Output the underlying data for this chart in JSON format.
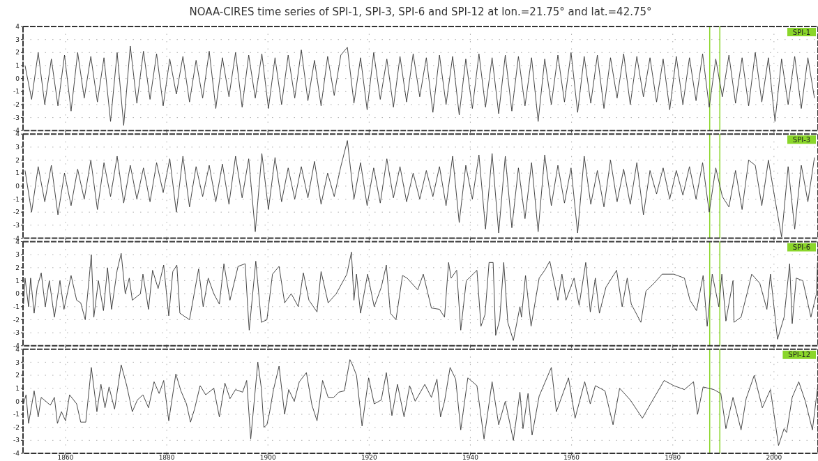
{
  "chart_data": [
    {
      "type": "line",
      "title": "NOAA-CIRES time series of SPI-1, SPI-3, SPI-6 and SPI-12 at lon.=21.75° and lat.=42.75°",
      "xlim": [
        1851.6,
        2008.7
      ],
      "xticks": [
        1860,
        1880,
        1900,
        1920,
        1940,
        1960,
        1980,
        2000
      ],
      "ylim": [
        -4,
        4
      ],
      "yticks": [
        -4,
        -3,
        -2,
        -1,
        0,
        1,
        2,
        3,
        4
      ],
      "grid": true,
      "tick_labels": "y",
      "annotations": [
        "SPI-1"
      ],
      "ref_lines": [
        {
          "axis": "x",
          "value": 1987.3,
          "color": "#8ad62a"
        },
        {
          "axis": "x",
          "value": 1989.3,
          "color": "#8ad62a"
        }
      ],
      "series": [
        {
          "color": "#333333",
          "x": [
            1852,
            1853.3,
            1854.6,
            1855.9,
            1857.2,
            1858.5,
            1859.8,
            1861.1,
            1862.4,
            1863.7,
            1865,
            1866.3,
            1867.6,
            1868.9,
            1870.2,
            1871.5,
            1872.8,
            1874.1,
            1875.4,
            1876.7,
            1878,
            1879.3,
            1880.6,
            1881.9,
            1883.2,
            1884.5,
            1885.8,
            1887.1,
            1888.4,
            1889.7,
            1891,
            1892.3,
            1893.6,
            1894.9,
            1896.2,
            1897.5,
            1898.8,
            1900.1,
            1901.4,
            1902.7,
            1904,
            1905.3,
            1906.6,
            1907.9,
            1909.2,
            1910.5,
            1911.8,
            1913.1,
            1914.4,
            1915.7,
            1917,
            1918.3,
            1919.6,
            1920.9,
            1922.2,
            1923.5,
            1924.8,
            1926.1,
            1927.4,
            1928.7,
            1930,
            1931.3,
            1932.6,
            1933.9,
            1935.2,
            1936.5,
            1937.8,
            1939.1,
            1940.4,
            1941.7,
            1943,
            1944.3,
            1945.6,
            1946.9,
            1948.2,
            1949.5,
            1950.8,
            1952.1,
            1953.4,
            1954.7,
            1956,
            1957.3,
            1958.6,
            1959.9,
            1961.2,
            1962.5,
            1963.8,
            1965.1,
            1966.4,
            1967.7,
            1969,
            1970.3,
            1971.6,
            1972.9,
            1974.2,
            1975.5,
            1976.8,
            1978.1,
            1979.4,
            1980.7,
            1982,
            1983.3,
            1984.6,
            1985.9,
            1987.2,
            1988.5,
            1989.8,
            1991.1,
            1992.4,
            1993.7,
            1995,
            1996.3,
            1997.6,
            1998.9,
            2000.2,
            2001.5,
            2002.8,
            2004.1,
            2005.4,
            2006.7,
            2008
          ],
          "values": [
            1.0,
            -1.6,
            2.0,
            -2.0,
            1.5,
            -2.1,
            1.8,
            -2.5,
            2.0,
            -1.5,
            1.7,
            -1.8,
            1.6,
            -3.3,
            2.0,
            -3.6,
            2.5,
            -1.9,
            2.1,
            -1.6,
            1.9,
            -2.1,
            1.5,
            -1.2,
            1.7,
            -1.8,
            1.4,
            -1.5,
            2.1,
            -2.3,
            1.6,
            -1.4,
            2.0,
            -2.2,
            1.8,
            -1.5,
            1.9,
            -2.3,
            1.6,
            -2.0,
            1.8,
            -1.5,
            2.2,
            -1.7,
            1.4,
            -2.1,
            1.7,
            -1.3,
            1.8,
            2.4,
            -1.9,
            1.6,
            -2.4,
            2.0,
            -1.6,
            1.5,
            -2.2,
            1.7,
            -1.8,
            1.9,
            -1.4,
            1.6,
            -2.6,
            1.8,
            -2.0,
            1.7,
            -2.8,
            1.5,
            -2.3,
            1.9,
            -2.2,
            1.6,
            -2.7,
            1.8,
            -2.5,
            1.7,
            -2.1,
            1.6,
            -3.3,
            1.5,
            -2.0,
            1.8,
            -1.8,
            2.0,
            -2.6,
            1.7,
            -1.9,
            1.8,
            -2.3,
            1.6,
            -1.5,
            1.9,
            -2.0,
            1.7,
            -1.4,
            1.6,
            -1.8,
            1.5,
            -2.4,
            1.7,
            -2.0,
            1.6,
            -1.7,
            1.9,
            -2.2,
            1.5,
            -1.4,
            1.8,
            -1.9,
            1.6,
            -2.1,
            2.0,
            -1.8,
            1.6,
            -3.3,
            1.5,
            -2.0,
            1.7,
            -2.3,
            1.6,
            -1.5
          ]
        }
      ]
    },
    {
      "type": "line",
      "xlim": [
        1851.6,
        2008.7
      ],
      "xticks": [
        1860,
        1880,
        1900,
        1920,
        1940,
        1960,
        1980,
        2000
      ],
      "ylim": [
        -4,
        4
      ],
      "yticks": [
        -4,
        -3,
        -2,
        -1,
        0,
        1,
        2,
        3,
        4
      ],
      "grid": true,
      "tick_labels": "y",
      "annotations": [
        "SPI-3"
      ],
      "ref_lines": [
        {
          "axis": "x",
          "value": 1987.3,
          "color": "#8ad62a"
        },
        {
          "axis": "x",
          "value": 1989.3,
          "color": "#8ad62a"
        }
      ],
      "series": [
        {
          "color": "#333333",
          "x": [
            1852,
            1853.3,
            1854.6,
            1855.9,
            1857.2,
            1858.5,
            1859.8,
            1861.1,
            1862.4,
            1863.7,
            1865,
            1866.3,
            1867.6,
            1868.9,
            1870.2,
            1871.5,
            1872.8,
            1874.1,
            1875.4,
            1876.7,
            1878,
            1879.3,
            1880.6,
            1881.9,
            1883.2,
            1884.5,
            1885.8,
            1887.1,
            1888.4,
            1889.7,
            1891,
            1892.3,
            1893.6,
            1894.9,
            1896.2,
            1897.5,
            1898.8,
            1900.1,
            1901.4,
            1902.7,
            1904,
            1905.3,
            1906.6,
            1907.9,
            1909.2,
            1910.5,
            1911.8,
            1913.1,
            1914.4,
            1915.7,
            1917,
            1918.3,
            1919.6,
            1920.9,
            1922.2,
            1923.5,
            1924.8,
            1926.1,
            1927.4,
            1928.7,
            1930,
            1931.3,
            1932.6,
            1933.9,
            1935.2,
            1936.5,
            1937.8,
            1939.1,
            1940.4,
            1941.7,
            1943,
            1944.3,
            1945.6,
            1946.9,
            1948.2,
            1949.5,
            1950.8,
            1952.1,
            1953.4,
            1954.7,
            1956,
            1957.3,
            1958.6,
            1959.9,
            1961.2,
            1962.5,
            1963.8,
            1965.1,
            1966.4,
            1967.7,
            1969,
            1970.3,
            1971.6,
            1972.9,
            1974.2,
            1975.5,
            1976.8,
            1978.1,
            1979.4,
            1980.7,
            1982,
            1983.3,
            1984.6,
            1985.9,
            1987.2,
            1988.5,
            1989.8,
            1991.1,
            1992.4,
            1993.7,
            1995,
            1996.3,
            1997.6,
            1998.9,
            2000.2,
            2001.5,
            2002.8,
            2004.1,
            2005.4,
            2006.7,
            2008
          ],
          "values": [
            1.2,
            -2.0,
            1.5,
            -1.2,
            1.6,
            -2.2,
            1.0,
            -1.5,
            1.3,
            -1.0,
            2.0,
            -1.8,
            1.8,
            -0.8,
            2.3,
            -1.3,
            1.6,
            -1.0,
            1.4,
            -1.2,
            1.8,
            -0.5,
            2.1,
            -2.0,
            2.3,
            -1.6,
            1.5,
            -0.8,
            1.6,
            -1.2,
            1.7,
            -1.4,
            2.3,
            -0.9,
            2.1,
            -3.5,
            2.5,
            -1.8,
            2.2,
            -1.2,
            1.4,
            -1.0,
            1.5,
            -0.9,
            1.9,
            -1.4,
            1.0,
            -0.8,
            1.5,
            3.5,
            -1.0,
            1.8,
            -1.5,
            1.4,
            -1.3,
            2.1,
            -0.9,
            1.5,
            -1.2,
            1.0,
            -1.0,
            1.2,
            -0.8,
            1.5,
            -1.5,
            2.3,
            -2.8,
            1.6,
            -1.0,
            2.4,
            -3.3,
            2.5,
            -3.6,
            2.3,
            -3.2,
            1.4,
            -2.5,
            1.8,
            -3.5,
            2.4,
            -1.5,
            1.6,
            -1.3,
            1.4,
            -3.6,
            2.3,
            -1.4,
            1.2,
            -1.6,
            2.0,
            -1.2,
            1.3,
            -1.4,
            1.8,
            -2.2,
            1.2,
            -0.6,
            1.4,
            -1.0,
            1.2,
            -0.7,
            1.5,
            -1.0,
            1.8,
            -2.0,
            1.4,
            -0.8,
            -1.6,
            1.2,
            -1.8,
            2.0,
            1.6,
            -1.5,
            2.0,
            -1.0,
            -3.9,
            1.5,
            -3.3,
            1.6,
            -1.2,
            2.2
          ]
        }
      ]
    },
    {
      "type": "line",
      "xlim": [
        1851.6,
        2008.7
      ],
      "xticks": [
        1860,
        1880,
        1900,
        1920,
        1940,
        1960,
        1980,
        2000
      ],
      "ylim": [
        -4,
        4
      ],
      "yticks": [
        -4,
        -3,
        -2,
        -1,
        0,
        1,
        2,
        3,
        4
      ],
      "grid": true,
      "tick_labels": "y",
      "annotations": [
        "SPI-6"
      ],
      "ref_lines": [
        {
          "axis": "x",
          "value": 1987.3,
          "color": "#8ad62a"
        },
        {
          "axis": "x",
          "value": 1989.3,
          "color": "#8ad62a"
        }
      ],
      "series": [
        {
          "color": "#333333",
          "x": [
            1851.7,
            1852,
            1852.7,
            1853.1,
            1853.8,
            1854.4,
            1855.2,
            1856,
            1856.8,
            1857.8,
            1858.9,
            1859.7,
            1861.1,
            1862.2,
            1863,
            1863.9,
            1865.1,
            1865.6,
            1866.5,
            1867.5,
            1868.3,
            1869.1,
            1870.2,
            1871,
            1871.8,
            1872.6,
            1873.2,
            1874.8,
            1875.3,
            1876.4,
            1877.2,
            1878.3,
            1879.4,
            1880.4,
            1881.2,
            1882,
            1882.6,
            1884.5,
            1886.3,
            1887.2,
            1888.2,
            1889.3,
            1890.4,
            1891.3,
            1892.5,
            1894.1,
            1895.5,
            1896,
            1896.3,
            1897.6,
            1898.7,
            1899.8,
            1900.9,
            1902.2,
            1903.3,
            1904.6,
            1906,
            1907,
            1908.1,
            1909.7,
            1910.5,
            1911.9,
            1913.5,
            1915.6,
            1916.5,
            1917,
            1917.5,
            1918.3,
            1919.7,
            1921,
            1922.4,
            1923.4,
            1924.2,
            1925.3,
            1926.6,
            1927.5,
            1929.6,
            1930.7,
            1932.3,
            1933.9,
            1934.9,
            1935.7,
            1936.2,
            1937.3,
            1938.1,
            1939.2,
            1941.3,
            1942.1,
            1942.9,
            1943.7,
            1944.5,
            1945,
            1945.8,
            1946.6,
            1947.4,
            1948.5,
            1949.8,
            1950.1,
            1950.9,
            1952,
            1953.6,
            1954.7,
            1955.7,
            1957.3,
            1958.1,
            1958.9,
            1960.5,
            1961.5,
            1962.8,
            1963.7,
            1964.7,
            1965.5,
            1966.8,
            1968.9,
            1970,
            1971,
            1971.8,
            1973.7,
            1974.7,
            1976.3,
            1977.9,
            1980.2,
            1982.3,
            1983.4,
            1984.7,
            1986,
            1986.8,
            1987.8,
            1989.1,
            1989.7,
            1990.5,
            1991.9,
            1992.1,
            1993.5,
            1994.8,
            1995.6,
            1997.2,
            1998.6,
            1999.3,
            2000.7,
            2002,
            2003.1,
            2003.6,
            2004.4,
            2005.7,
            2007.3,
            2008.4,
            2008.6
          ],
          "values": [
            -0.8,
            1.2,
            -1.0,
            1.2,
            -1.5,
            0.5,
            1.6,
            -1.0,
            1.0,
            -1.8,
            1.0,
            -1.2,
            1.4,
            -0.5,
            -0.7,
            -2.0,
            3.0,
            -1.8,
            1.0,
            -1.3,
            2.0,
            -1.2,
            1.8,
            3.1,
            0.0,
            1.2,
            -0.5,
            0.0,
            1.5,
            -1.2,
            1.8,
            0.4,
            2.2,
            -1.7,
            1.7,
            2.2,
            -1.5,
            -2.0,
            1.9,
            -1.0,
            1.2,
            0.0,
            -0.8,
            2.3,
            -0.5,
            2.1,
            2.3,
            -1.0,
            -2.8,
            2.5,
            -2.2,
            -2.0,
            1.5,
            2.1,
            -0.7,
            0.0,
            -1.0,
            1.6,
            -0.5,
            -1.4,
            1.7,
            -0.7,
            0.0,
            1.5,
            3.2,
            -0.5,
            1.5,
            -1.5,
            1.5,
            -1.0,
            0.5,
            2.2,
            -1.5,
            -2.0,
            1.4,
            1.2,
            0.3,
            1.5,
            -1.1,
            -1.2,
            -1.8,
            2.4,
            1.2,
            1.8,
            -2.8,
            1.0,
            1.8,
            -2.5,
            -1.6,
            2.4,
            2.4,
            -3.2,
            -2.0,
            2.4,
            -2.2,
            -3.6,
            -1.0,
            -1.8,
            1.4,
            -2.5,
            1.2,
            1.8,
            2.5,
            -0.5,
            1.5,
            -0.5,
            1.2,
            -0.9,
            2.4,
            -1.4,
            1.2,
            -1.5,
            0.5,
            1.8,
            -1.0,
            1.2,
            -0.8,
            -2.2,
            0.2,
            0.8,
            1.5,
            1.5,
            1.2,
            -0.5,
            -1.3,
            1.4,
            -2.5,
            1.5,
            -1.0,
            1.5,
            -2.1,
            1.0,
            -2.2,
            -1.8,
            0.2,
            1.5,
            0.8,
            -1.2,
            1.5,
            -3.5,
            -1.8,
            2.3,
            -2.3,
            1.2,
            1.0,
            -1.8,
            0.0,
            2.4
          ]
        }
      ]
    },
    {
      "type": "line",
      "xlim": [
        1851.6,
        2008.7
      ],
      "xticks": [
        1860,
        1880,
        1900,
        1920,
        1940,
        1960,
        1980,
        2000
      ],
      "ylim": [
        -4,
        4
      ],
      "yticks": [
        -4,
        -3,
        -2,
        -1,
        0,
        1,
        2,
        3,
        4
      ],
      "grid": true,
      "annotations": [
        "SPI-12"
      ],
      "ref_lines": [
        {
          "axis": "x",
          "value": 1987.3,
          "color": "#8ad62a"
        },
        {
          "axis": "x",
          "value": 1989.3,
          "color": "#8ad62a"
        }
      ],
      "series": [
        {
          "color": "#333333",
          "x": [
            1851.7,
            1852.2,
            1852.7,
            1853.8,
            1854.6,
            1855.2,
            1857,
            1857.8,
            1858.4,
            1859.2,
            1860,
            1860.8,
            1862.2,
            1863,
            1864,
            1865.1,
            1866.2,
            1867,
            1867.8,
            1868.6,
            1869.7,
            1871,
            1872.1,
            1873.2,
            1874.2,
            1875.3,
            1876.4,
            1877.5,
            1878.5,
            1879.4,
            1880.4,
            1881.8,
            1882.8,
            1883.9,
            1884.7,
            1885.5,
            1886.6,
            1887.7,
            1889.3,
            1890.4,
            1891.5,
            1892.5,
            1893.6,
            1895,
            1895.8,
            1896.6,
            1898,
            1898.7,
            1899.2,
            1899.8,
            1900.3,
            1901.1,
            1902.2,
            1903.3,
            1904.1,
            1905.2,
            1906.2,
            1907.6,
            1908.7,
            1909.7,
            1910.8,
            1911.9,
            1913,
            1914,
            1915.1,
            1916.2,
            1916.7,
            1917.5,
            1918.6,
            1919.9,
            1921,
            1922.4,
            1923.4,
            1924.5,
            1925.6,
            1926.9,
            1928,
            1929.1,
            1931,
            1932.3,
            1933.4,
            1934.1,
            1934.9,
            1936,
            1937.1,
            1938.1,
            1939.5,
            1941.3,
            1942.7,
            1944.3,
            1945.6,
            1946.9,
            1948.5,
            1949.8,
            1950.4,
            1951.4,
            1952.2,
            1953.6,
            1956,
            1957,
            1959.4,
            1960.7,
            1962.6,
            1963.7,
            1964.7,
            1966.6,
            1968.2,
            1969.5,
            1971.6,
            1974,
            1975.9,
            1978.3,
            1980.2,
            1982.3,
            1984.1,
            1984.9,
            1986,
            1988.1,
            1989.5,
            1990.5,
            1991.9,
            1993.5,
            1994.5,
            1996.1,
            1997.7,
            1999.3,
            2000.9,
            2002,
            2002.5,
            2003.6,
            2004.9,
            2006.2,
            2007.6,
            2008.6
          ],
          "values": [
            -0.2,
            0.5,
            -1.7,
            0.8,
            -1.2,
            0.3,
            -0.3,
            0.3,
            -1.7,
            -0.8,
            -1.5,
            0.5,
            -0.2,
            -1.6,
            -1.6,
            2.6,
            -0.8,
            1.3,
            -0.5,
            1.1,
            -0.6,
            2.8,
            1.2,
            -0.8,
            0.1,
            0.5,
            -0.5,
            1.5,
            0.6,
            1.6,
            -1.5,
            2.1,
            0.8,
            -0.2,
            -1.6,
            -0.6,
            1.2,
            0.5,
            1.0,
            -1.2,
            1.4,
            0.2,
            0.9,
            0.7,
            1.6,
            -2.9,
            3.0,
            1.0,
            -2.0,
            -1.8,
            -0.9,
            0.9,
            2.7,
            -1.0,
            0.9,
            0.0,
            1.5,
            2.2,
            -0.3,
            -1.5,
            1.6,
            0.3,
            0.3,
            0.7,
            0.8,
            3.2,
            2.8,
            2.0,
            -1.9,
            1.8,
            -0.2,
            0.1,
            2.2,
            -1.1,
            1.3,
            -1.2,
            1.2,
            0.0,
            1.3,
            0.3,
            1.7,
            -1.2,
            0.0,
            2.6,
            1.7,
            -2.2,
            1.8,
            1.2,
            -2.9,
            1.5,
            -1.8,
            0.0,
            -3.0,
            0.7,
            -2.1,
            0.6,
            -2.6,
            0.4,
            2.6,
            -0.8,
            1.8,
            -1.3,
            1.5,
            -0.2,
            1.2,
            0.8,
            -1.8,
            1.0,
            0.1,
            -1.3,
            0.0,
            1.6,
            1.2,
            0.9,
            1.5,
            -1.0,
            1.1,
            0.9,
            0.6,
            -2.1,
            0.3,
            -2.2,
            0.2,
            2.0,
            -0.5,
            0.9,
            -3.4,
            -2.1,
            -2.4,
            0.3,
            1.5,
            0.0,
            -2.2,
            1.0
          ]
        }
      ]
    }
  ]
}
